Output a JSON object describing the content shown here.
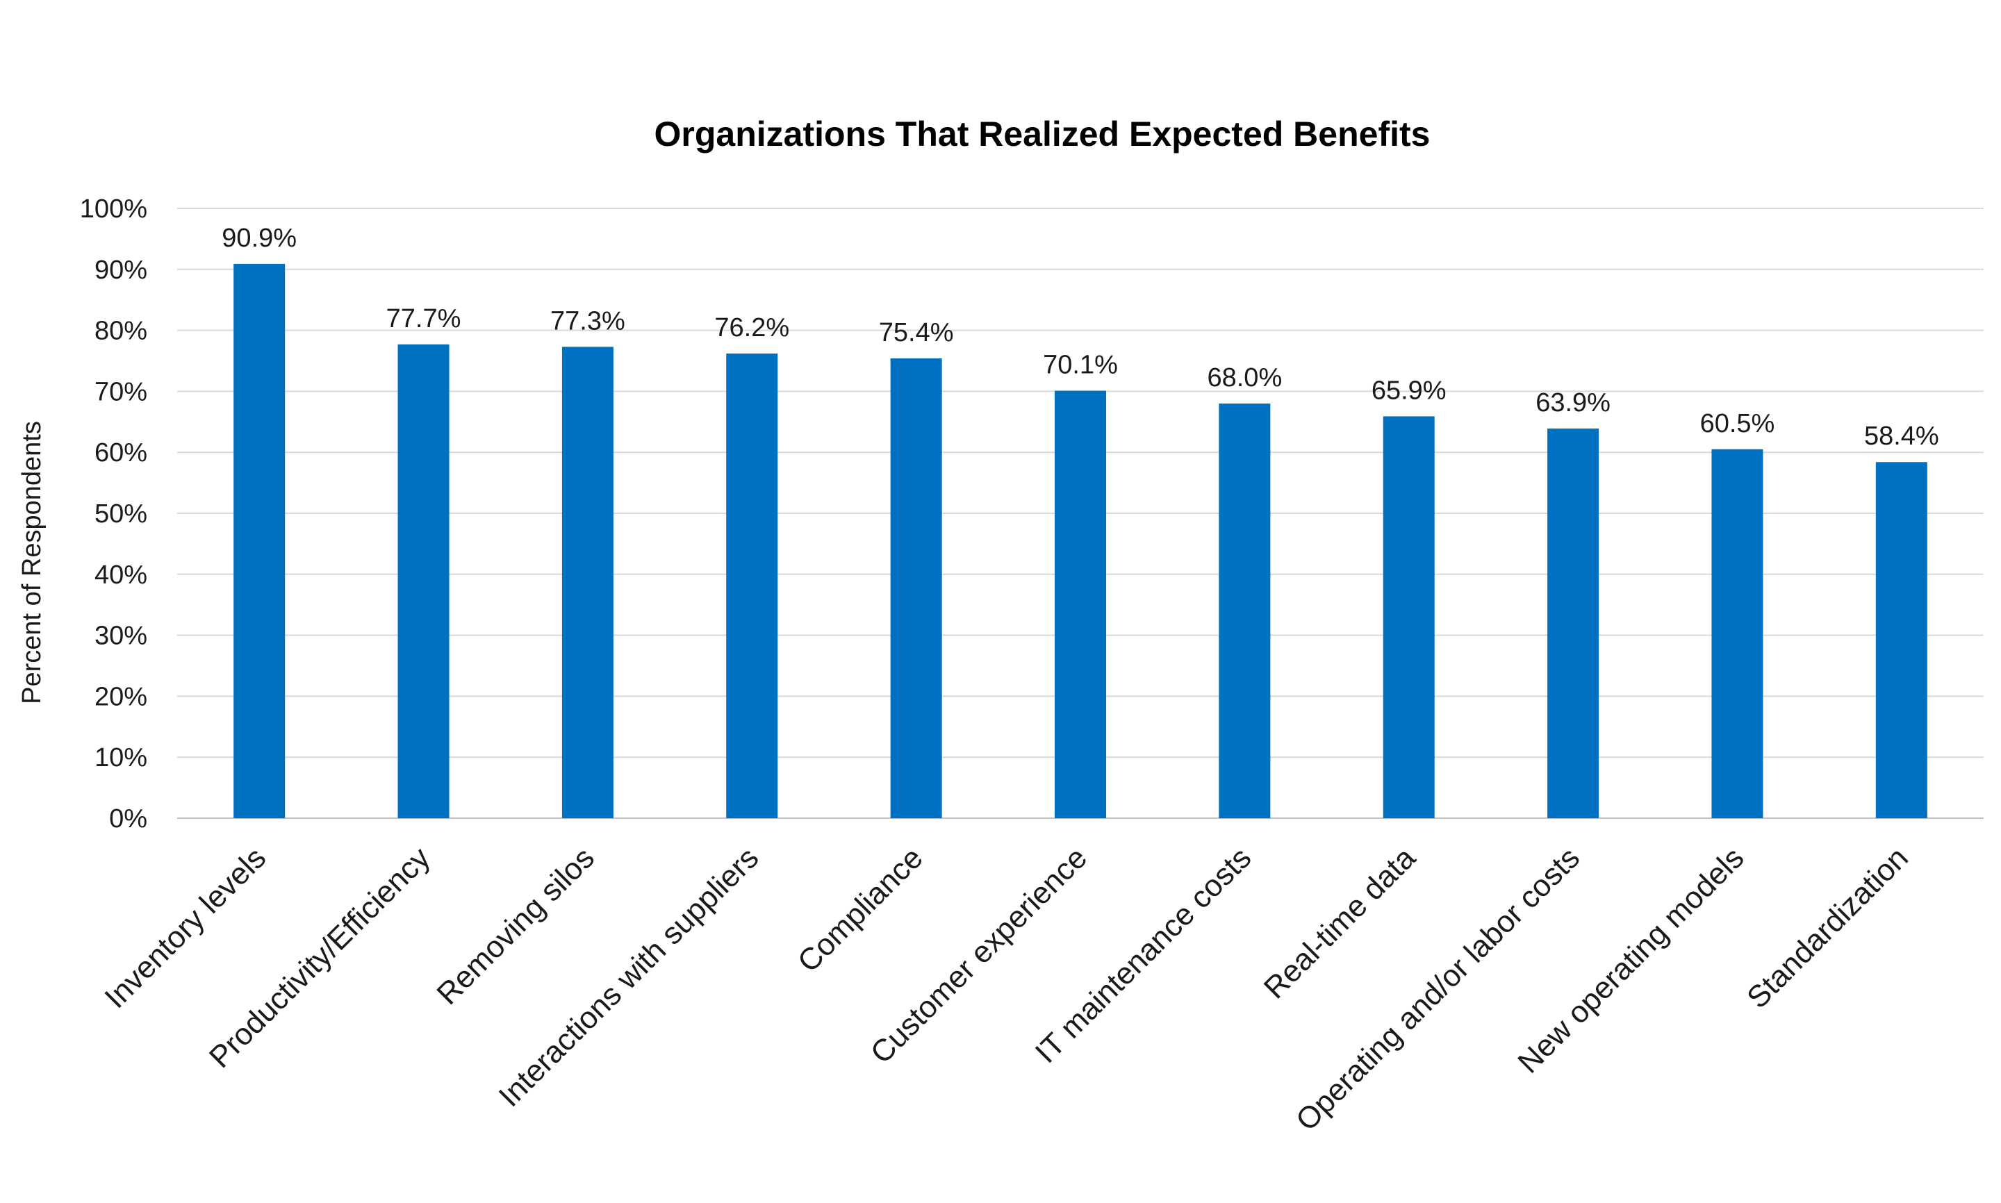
{
  "chart_data": {
    "type": "bar",
    "title": "Organizations That Realized Expected Benefits",
    "xlabel": "",
    "ylabel": "Percent of Respondents",
    "ylim": [
      0,
      100
    ],
    "yticks": [
      "0%",
      "10%",
      "20%",
      "30%",
      "40%",
      "50%",
      "60%",
      "70%",
      "80%",
      "90%",
      "100%"
    ],
    "grid": true,
    "legend": "none",
    "bar_color": "#0070C0",
    "categories": [
      "Inventory levels",
      "Productivity/Efficiency",
      "Removing silos",
      "Interactions with suppliers",
      "Compliance",
      "Customer experience",
      "IT maintenance costs",
      "Real-time data",
      "Operating and/or labor costs",
      "New operating models",
      "Standardization"
    ],
    "values": [
      90.9,
      77.7,
      77.3,
      76.2,
      75.4,
      70.1,
      68.0,
      65.9,
      63.9,
      60.5,
      58.4
    ],
    "value_labels": [
      "90.9%",
      "77.7%",
      "77.3%",
      "76.2%",
      "75.4%",
      "70.1%",
      "68.0%",
      "65.9%",
      "63.9%",
      "60.5%",
      "58.4%"
    ]
  }
}
